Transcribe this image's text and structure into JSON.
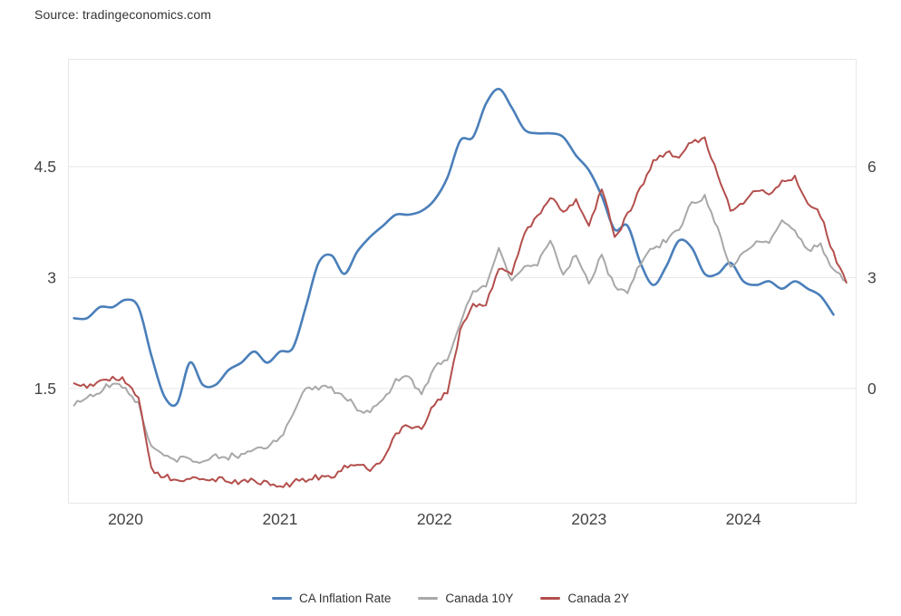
{
  "source": "Source: tradingeconomics.com",
  "chart_data": {
    "type": "line",
    "x_start": "2019-09",
    "frequency": "monthly",
    "x_tick_labels": [
      "2020",
      "2021",
      "2022",
      "2023",
      "2024"
    ],
    "left_axis": {
      "ticks": [
        "1.5",
        "3",
        "4.5"
      ],
      "min": -0.05,
      "max": 5.95
    },
    "right_axis": {
      "ticks": [
        "0",
        "3",
        "6"
      ],
      "min": -3.1,
      "max": 8.9
    },
    "grid": "horizontal",
    "legend_position": "bottom",
    "series": [
      {
        "name": "CA Inflation Rate",
        "color": "#4a7fba",
        "axis": "right",
        "style": "smooth",
        "values": [
          1.9,
          1.9,
          2.2,
          2.2,
          2.4,
          2.2,
          0.9,
          -0.2,
          -0.4,
          0.7,
          0.1,
          0.1,
          0.5,
          0.7,
          1.0,
          0.7,
          1.0,
          1.1,
          2.2,
          3.4,
          3.6,
          3.1,
          3.7,
          4.1,
          4.4,
          4.7,
          4.7,
          4.8,
          5.1,
          5.7,
          6.7,
          6.8,
          7.7,
          8.1,
          7.6,
          7.0,
          6.9,
          6.9,
          6.8,
          6.3,
          5.9,
          5.2,
          4.3,
          4.4,
          3.4,
          2.8,
          3.3,
          4.0,
          3.8,
          3.1,
          3.1,
          3.4,
          2.9,
          2.8,
          2.9,
          2.7,
          2.9,
          2.7,
          2.5,
          2.0
        ]
      },
      {
        "name": "Canada 10Y",
        "color": "#a8a8a8",
        "axis": "left",
        "style": "noisy",
        "values": [
          1.28,
          1.38,
          1.45,
          1.58,
          1.5,
          1.28,
          0.72,
          0.6,
          0.55,
          0.54,
          0.48,
          0.6,
          0.57,
          0.62,
          0.68,
          0.7,
          0.84,
          1.15,
          1.5,
          1.52,
          1.49,
          1.4,
          1.22,
          1.18,
          1.36,
          1.6,
          1.68,
          1.43,
          1.8,
          1.9,
          2.4,
          2.82,
          2.88,
          3.4,
          2.95,
          3.15,
          3.2,
          3.5,
          3.05,
          3.3,
          2.92,
          3.3,
          2.88,
          2.82,
          3.18,
          3.4,
          3.5,
          3.65,
          4.02,
          4.1,
          3.68,
          3.1,
          3.35,
          3.5,
          3.48,
          3.78,
          3.65,
          3.38,
          3.42,
          3.08,
          2.95
        ]
      },
      {
        "name": "Canada 2Y",
        "color": "#b34f4c",
        "axis": "left",
        "style": "noisy",
        "values": [
          1.56,
          1.52,
          1.58,
          1.66,
          1.6,
          1.35,
          0.42,
          0.3,
          0.28,
          0.29,
          0.26,
          0.27,
          0.25,
          0.25,
          0.26,
          0.22,
          0.17,
          0.23,
          0.26,
          0.3,
          0.31,
          0.44,
          0.45,
          0.41,
          0.53,
          0.9,
          1.0,
          0.95,
          1.28,
          1.45,
          2.28,
          2.6,
          2.65,
          3.1,
          3.05,
          3.62,
          3.8,
          4.1,
          3.88,
          4.05,
          3.7,
          4.2,
          3.55,
          3.85,
          4.2,
          4.58,
          4.68,
          4.64,
          4.85,
          4.88,
          4.4,
          3.9,
          4.0,
          4.18,
          4.15,
          4.28,
          4.35,
          4.0,
          3.85,
          3.32,
          2.93
        ]
      }
    ]
  }
}
